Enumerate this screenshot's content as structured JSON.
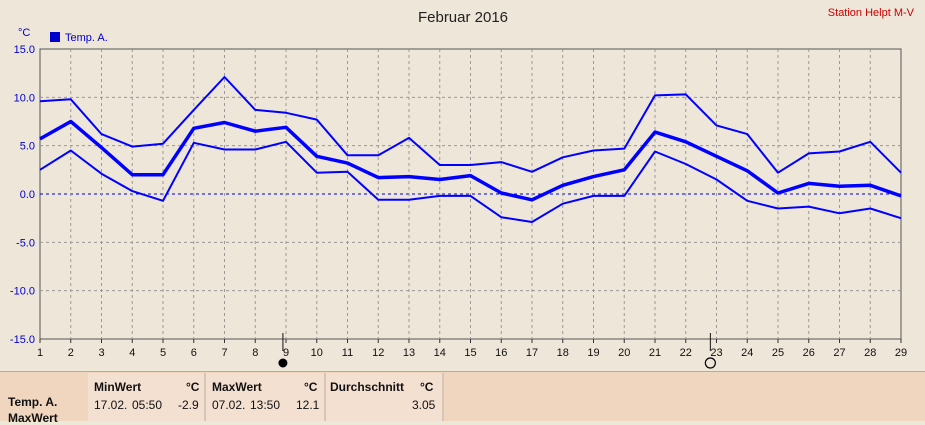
{
  "station": "Station Helpt M-V",
  "chart_data": {
    "type": "line",
    "title": "Februar 2016",
    "ylabel": "°C",
    "ylim": [
      -15,
      15
    ],
    "yticks": [
      "15.0",
      "10.0",
      "5.0",
      "0.0",
      "-5.0",
      "-10.0",
      "-15.0"
    ],
    "x": [
      1,
      2,
      3,
      4,
      5,
      6,
      7,
      8,
      9,
      10,
      11,
      12,
      13,
      14,
      15,
      16,
      17,
      18,
      19,
      20,
      21,
      22,
      23,
      24,
      25,
      26,
      27,
      28,
      29
    ],
    "xticks": [
      "1",
      "2",
      "3",
      "4",
      "5",
      "6",
      "7",
      "8",
      "9",
      "10",
      "11",
      "12",
      "13",
      "14",
      "15",
      "16",
      "17",
      "18",
      "19",
      "20",
      "21",
      "22",
      "23",
      "24",
      "25",
      "26",
      "27",
      "28",
      "29"
    ],
    "grid": true,
    "legend": {
      "label": "Temp. A.",
      "position": "top-left",
      "color": "#0000cc"
    },
    "series": [
      {
        "name": "max",
        "color": "#0000ff",
        "width": 2,
        "values": [
          9.6,
          9.8,
          6.2,
          4.9,
          5.2,
          8.7,
          12.1,
          8.7,
          8.4,
          7.7,
          4.0,
          4.0,
          5.8,
          3.0,
          3.0,
          3.3,
          2.3,
          3.8,
          4.5,
          4.7,
          10.2,
          10.3,
          7.1,
          6.2,
          2.2,
          4.2,
          4.4,
          5.4,
          2.2
        ]
      },
      {
        "name": "mean",
        "color": "#0000ff",
        "width": 3.5,
        "values": [
          5.7,
          7.5,
          4.8,
          2.0,
          2.0,
          6.8,
          7.4,
          6.5,
          6.9,
          3.9,
          3.2,
          1.7,
          1.8,
          1.5,
          1.9,
          0.1,
          -0.6,
          0.9,
          1.8,
          2.5,
          6.4,
          5.4,
          3.9,
          2.4,
          0.1,
          1.1,
          0.8,
          0.9,
          -0.2
        ]
      },
      {
        "name": "min",
        "color": "#0000ff",
        "width": 2,
        "values": [
          2.5,
          4.5,
          2.1,
          0.3,
          -0.7,
          5.3,
          4.6,
          4.6,
          5.4,
          2.2,
          2.3,
          -0.6,
          -0.6,
          -0.2,
          -0.2,
          -2.4,
          -2.9,
          -1.0,
          -0.2,
          -0.2,
          4.4,
          3.1,
          1.5,
          -0.7,
          -1.5,
          -1.3,
          -2.0,
          -1.5,
          -2.5
        ]
      }
    ],
    "markers": [
      {
        "type": "filled-circle",
        "x": 8.9
      },
      {
        "type": "open-circle",
        "x": 22.8
      }
    ]
  },
  "stats": {
    "row_label_1": "Temp. A.",
    "row_label_2": "MaxWert",
    "min_header": "MinWert",
    "min_unit": "°C",
    "min_date": "17.02.",
    "min_time": "05:50",
    "min_value": "-2.9",
    "max_header": "MaxWert",
    "max_unit": "°C",
    "max_date": "07.02.",
    "max_time": "13:50",
    "max_value": "12.1",
    "avg_header": "Durchschnitt",
    "avg_unit": "°C",
    "avg_value": "3.05"
  }
}
